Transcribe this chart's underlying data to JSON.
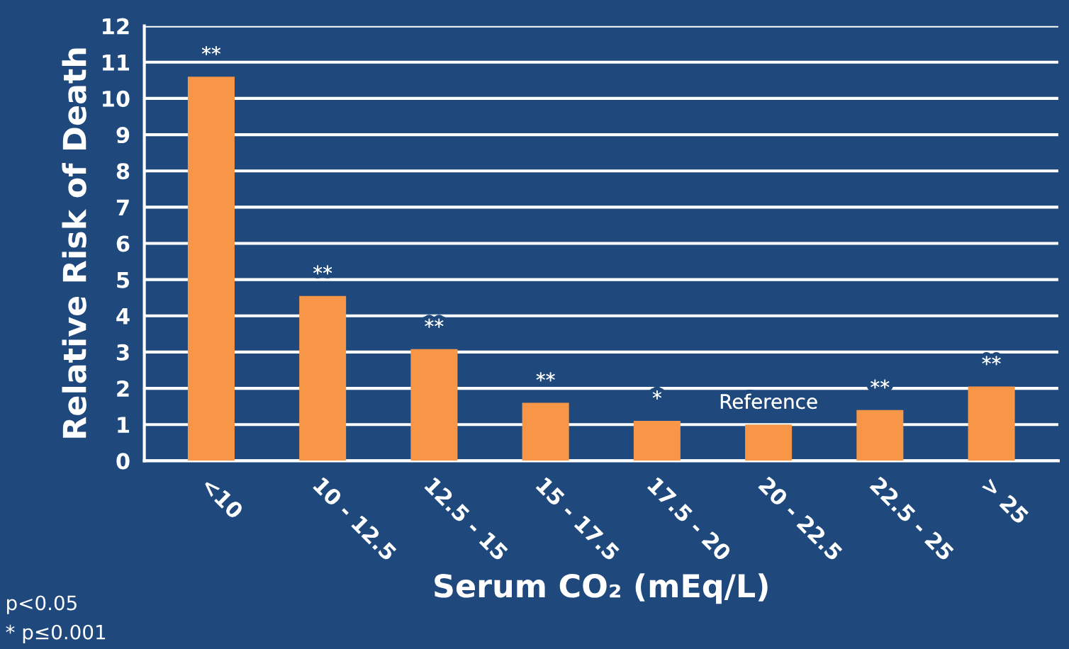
{
  "chart_data": {
    "type": "bar",
    "categories": [
      "<10",
      "10 - 12.5",
      "12.5 - 15",
      "15 - 17.5",
      "17.5 - 20",
      "20 - 22.5",
      "22.5 - 25",
      "> 25"
    ],
    "values": [
      10.6,
      4.55,
      3.08,
      1.6,
      1.1,
      1.0,
      1.4,
      2.05
    ],
    "color": "#f79646",
    "xlabel": "Serum CO₂ (mEq/L)",
    "ylabel": "Relative Risk of Death",
    "ylim": [
      0,
      12
    ],
    "yticks": [
      0,
      1,
      2,
      3,
      4,
      5,
      6,
      7,
      8,
      9,
      10,
      11,
      12
    ],
    "grid": "y",
    "value_labels": [
      "**",
      "**",
      "**",
      "**",
      "*",
      "Reference",
      "**",
      "**"
    ],
    "annotations": [
      "p<0.05",
      "* p≤0.001"
    ]
  }
}
